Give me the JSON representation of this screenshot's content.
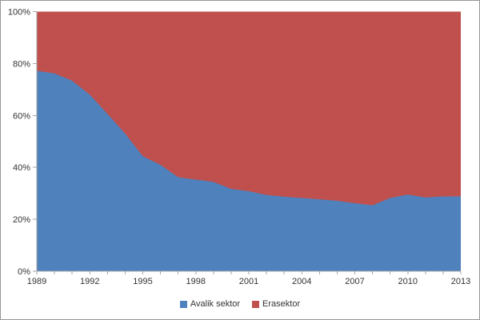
{
  "chart_data": {
    "type": "area",
    "stacking": "percent",
    "title": "",
    "xlabel": "",
    "ylabel": "",
    "ylim": [
      0,
      100
    ],
    "grid": false,
    "legend_position": "bottom",
    "x": [
      1989,
      1990,
      1991,
      1992,
      1993,
      1994,
      1995,
      1996,
      1997,
      1998,
      1999,
      2000,
      2001,
      2002,
      2003,
      2004,
      2005,
      2006,
      2007,
      2008,
      2009,
      2010,
      2011,
      2012,
      2013
    ],
    "x_axis_labels": [
      "1989",
      "1992",
      "1995",
      "1998",
      "2001",
      "2004",
      "2007",
      "2010",
      "2013"
    ],
    "y_ticks": [
      "0%",
      "20%",
      "40%",
      "60%",
      "80%",
      "100%"
    ],
    "series": [
      {
        "name": "Avalik sektor",
        "color": "#4F81BD",
        "values": [
          77.2,
          76.2,
          73.4,
          68.0,
          60.6,
          53.0,
          44.3,
          41.0,
          36.2,
          35.3,
          34.4,
          31.7,
          30.8,
          29.4,
          28.7,
          28.2,
          27.7,
          27.1,
          26.2,
          25.4,
          28.2,
          29.5,
          28.4,
          28.8,
          28.8
        ]
      },
      {
        "name": "Erasektor",
        "color": "#C0504D",
        "values": [
          22.8,
          23.8,
          26.6,
          32.0,
          39.4,
          47.0,
          55.7,
          59.0,
          63.8,
          64.7,
          65.6,
          68.3,
          69.2,
          70.6,
          71.3,
          71.8,
          72.3,
          72.9,
          73.8,
          74.6,
          71.8,
          70.5,
          71.6,
          71.2,
          71.2
        ]
      }
    ]
  },
  "legend": {
    "items": [
      {
        "label": "Avalik sektor",
        "color": "#4F81BD"
      },
      {
        "label": "Erasektor",
        "color": "#C0504D"
      }
    ]
  },
  "colors": {
    "axis": "#a6a6a6",
    "axis_text": "#333333",
    "frame_border": "#979797",
    "background": "#ffffff"
  }
}
